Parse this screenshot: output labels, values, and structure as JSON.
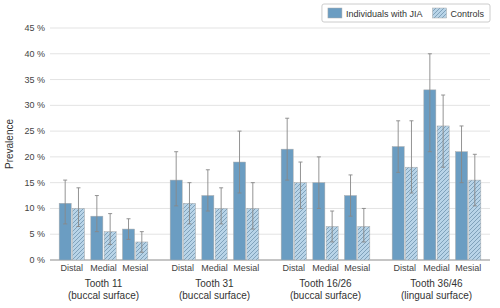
{
  "chart_data": {
    "type": "bar",
    "ylabel": "Prevalence",
    "groups": [
      [
        "Tooth 11",
        "(buccal surface)"
      ],
      [
        "Tooth 31",
        "(buccal surface)"
      ],
      [
        "Tooth 16/26",
        "(buccal surface)"
      ],
      [
        "Tooth 36/46",
        "(lingual surface)"
      ]
    ],
    "categories": [
      "Distal",
      "Medial",
      "Mesial"
    ],
    "series": [
      {
        "name": "Individuals with JIA",
        "color": "#6B9DC2",
        "values": [
          [
            11,
            8.5,
            6
          ],
          [
            15.5,
            12.5,
            19
          ],
          [
            21.5,
            15,
            12.5
          ],
          [
            22,
            33,
            21
          ]
        ],
        "errors_low": [
          [
            4,
            3,
            2
          ],
          [
            5,
            3,
            6
          ],
          [
            6,
            5,
            4
          ],
          [
            5,
            12,
            6
          ]
        ],
        "errors_high": [
          [
            4.5,
            4,
            2
          ],
          [
            5.5,
            5,
            6
          ],
          [
            6,
            5,
            4
          ],
          [
            5,
            7,
            5
          ]
        ]
      },
      {
        "name": "Controls",
        "color": "#B8D4E8",
        "values": [
          [
            10,
            5.5,
            3.5
          ],
          [
            11,
            10,
            10
          ],
          [
            15,
            6.5,
            6.5
          ],
          [
            18,
            26,
            15.5
          ]
        ],
        "errors_low": [
          [
            3.5,
            2.5,
            2
          ],
          [
            4,
            3,
            4
          ],
          [
            5,
            3,
            3
          ],
          [
            5,
            8,
            5
          ]
        ],
        "errors_high": [
          [
            4,
            3.5,
            2
          ],
          [
            4,
            4,
            5
          ],
          [
            4,
            3,
            3.5
          ],
          [
            9,
            6,
            5
          ]
        ]
      }
    ],
    "ylim": [
      0,
      45
    ],
    "yticks": [
      {
        "value": 0,
        "label": "0 %"
      },
      {
        "value": 5,
        "label": "5 %"
      },
      {
        "value": 10,
        "label": "10 %"
      },
      {
        "value": 15,
        "label": "15 %"
      },
      {
        "value": 20,
        "label": "20 %"
      },
      {
        "value": 25,
        "label": "25 %"
      },
      {
        "value": 30,
        "label": "30 %"
      },
      {
        "value": 35,
        "label": "35 %"
      },
      {
        "value": 40,
        "label": "40 %"
      },
      {
        "value": 45,
        "label": "45 %"
      }
    ],
    "grid": true,
    "legend": "upper-right"
  }
}
